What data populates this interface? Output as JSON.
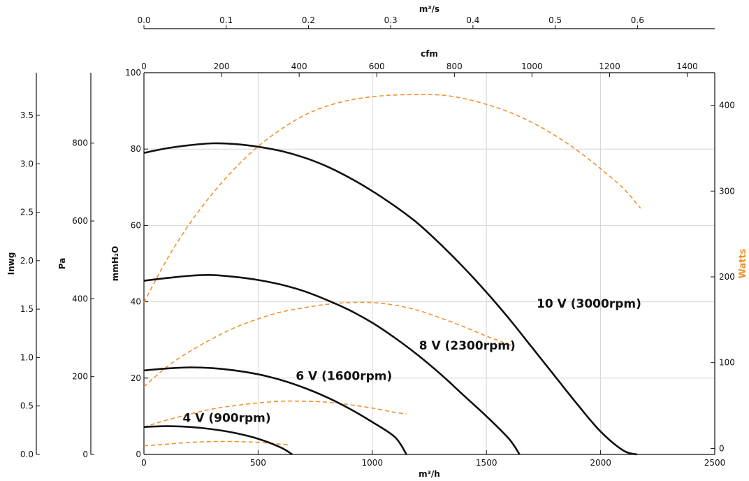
{
  "chart_data": {
    "type": "line",
    "x_axis_bottom": {
      "label": "m³/h",
      "range": [
        0,
        2500
      ],
      "ticks": [
        0,
        500,
        1000,
        1500,
        2000,
        2500
      ]
    },
    "x_axis_top_cfm": {
      "label": "cfm",
      "range": [
        0,
        1471
      ],
      "ticks": [
        0,
        200,
        400,
        600,
        800,
        1000,
        1200,
        1400
      ]
    },
    "x_axis_top_m3s": {
      "label": "m³/s",
      "range": [
        0,
        0.694
      ],
      "ticks": [
        "0.0",
        "0.1",
        "0.2",
        "0.3",
        "0.4",
        "0.5",
        "0.6"
      ]
    },
    "y_axis_left_mmh2o": {
      "label": "mmH₂O",
      "range": [
        0,
        100
      ],
      "ticks": [
        0,
        20,
        40,
        60,
        80,
        100
      ]
    },
    "y_axis_left_pa": {
      "label": "Pa",
      "range": [
        0,
        981
      ],
      "ticks": [
        0,
        200,
        400,
        600,
        800
      ]
    },
    "y_axis_left_inwg": {
      "label": "Inwg",
      "range": [
        0,
        3.94
      ],
      "ticks": [
        "0.0",
        "0.5",
        "1.0",
        "1.5",
        "2.0",
        "2.5",
        "3.0",
        "3.5"
      ]
    },
    "y_axis_right_watts": {
      "label": "Watts",
      "range": [
        -7,
        438
      ],
      "ticks": [
        0,
        100,
        200,
        300,
        400
      ]
    },
    "grid": true,
    "pressure_series": [
      {
        "name": "10 V (3000rpm)",
        "points": [
          [
            0,
            79
          ],
          [
            100,
            80.2
          ],
          [
            200,
            81
          ],
          [
            300,
            81.5
          ],
          [
            400,
            81.3
          ],
          [
            500,
            80.6
          ],
          [
            600,
            79.5
          ],
          [
            700,
            77.8
          ],
          [
            800,
            75.5
          ],
          [
            900,
            72.5
          ],
          [
            1000,
            69
          ],
          [
            1100,
            65
          ],
          [
            1200,
            60.5
          ],
          [
            1300,
            55
          ],
          [
            1400,
            49
          ],
          [
            1500,
            42.5
          ],
          [
            1600,
            35.5
          ],
          [
            1700,
            28
          ],
          [
            1800,
            20.5
          ],
          [
            1900,
            13
          ],
          [
            2000,
            6
          ],
          [
            2100,
            1
          ],
          [
            2160,
            0
          ]
        ]
      },
      {
        "name": "8 V (2300rpm)",
        "points": [
          [
            0,
            45.5
          ],
          [
            100,
            46.2
          ],
          [
            200,
            46.8
          ],
          [
            300,
            47
          ],
          [
            400,
            46.5
          ],
          [
            500,
            45.7
          ],
          [
            600,
            44.5
          ],
          [
            700,
            42.8
          ],
          [
            800,
            40.5
          ],
          [
            900,
            37.8
          ],
          [
            1000,
            34.5
          ],
          [
            1100,
            30.5
          ],
          [
            1200,
            26
          ],
          [
            1300,
            21
          ],
          [
            1400,
            15.5
          ],
          [
            1500,
            10
          ],
          [
            1600,
            4
          ],
          [
            1645,
            0
          ]
        ]
      },
      {
        "name": "6 V (1600rpm)",
        "points": [
          [
            0,
            22
          ],
          [
            100,
            22.5
          ],
          [
            200,
            22.8
          ],
          [
            300,
            22.6
          ],
          [
            400,
            22
          ],
          [
            500,
            21
          ],
          [
            600,
            19.5
          ],
          [
            700,
            17.5
          ],
          [
            800,
            15
          ],
          [
            900,
            12
          ],
          [
            1000,
            8.5
          ],
          [
            1100,
            4.5
          ],
          [
            1150,
            0
          ]
        ]
      },
      {
        "name": "4 V (900rpm)",
        "points": [
          [
            0,
            7.2
          ],
          [
            100,
            7.4
          ],
          [
            200,
            7.2
          ],
          [
            300,
            6.6
          ],
          [
            400,
            5.6
          ],
          [
            500,
            4.1
          ],
          [
            600,
            1.8
          ],
          [
            650,
            0
          ]
        ]
      }
    ],
    "power_series": [
      {
        "points": [
          [
            0,
            170
          ],
          [
            100,
            220
          ],
          [
            200,
            262
          ],
          [
            300,
            297
          ],
          [
            400,
            327
          ],
          [
            500,
            352
          ],
          [
            600,
            372
          ],
          [
            700,
            388
          ],
          [
            800,
            399
          ],
          [
            900,
            406
          ],
          [
            1000,
            410
          ],
          [
            1100,
            412
          ],
          [
            1200,
            412.5
          ],
          [
            1300,
            412
          ],
          [
            1400,
            408
          ],
          [
            1500,
            401
          ],
          [
            1600,
            392
          ],
          [
            1700,
            380
          ],
          [
            1800,
            365
          ],
          [
            1900,
            347
          ],
          [
            2000,
            326
          ],
          [
            2100,
            303
          ],
          [
            2175,
            280
          ]
        ]
      },
      {
        "points": [
          [
            0,
            72
          ],
          [
            100,
            95
          ],
          [
            200,
            113
          ],
          [
            300,
            128
          ],
          [
            400,
            141
          ],
          [
            500,
            151
          ],
          [
            600,
            159
          ],
          [
            700,
            164
          ],
          [
            800,
            168
          ],
          [
            900,
            170
          ],
          [
            1000,
            170
          ],
          [
            1100,
            167
          ],
          [
            1200,
            161
          ],
          [
            1300,
            152
          ],
          [
            1400,
            142
          ],
          [
            1500,
            131
          ],
          [
            1610,
            120
          ]
        ]
      },
      {
        "points": [
          [
            0,
            25
          ],
          [
            100,
            33
          ],
          [
            200,
            40
          ],
          [
            300,
            46
          ],
          [
            400,
            50
          ],
          [
            500,
            53
          ],
          [
            600,
            55
          ],
          [
            700,
            55
          ],
          [
            800,
            54
          ],
          [
            900,
            51
          ],
          [
            1000,
            47
          ],
          [
            1100,
            42
          ],
          [
            1150,
            40
          ]
        ]
      },
      {
        "points": [
          [
            0,
            3
          ],
          [
            100,
            5
          ],
          [
            200,
            7
          ],
          [
            300,
            8
          ],
          [
            400,
            8
          ],
          [
            500,
            7
          ],
          [
            600,
            5
          ],
          [
            640,
            4
          ]
        ]
      }
    ]
  }
}
